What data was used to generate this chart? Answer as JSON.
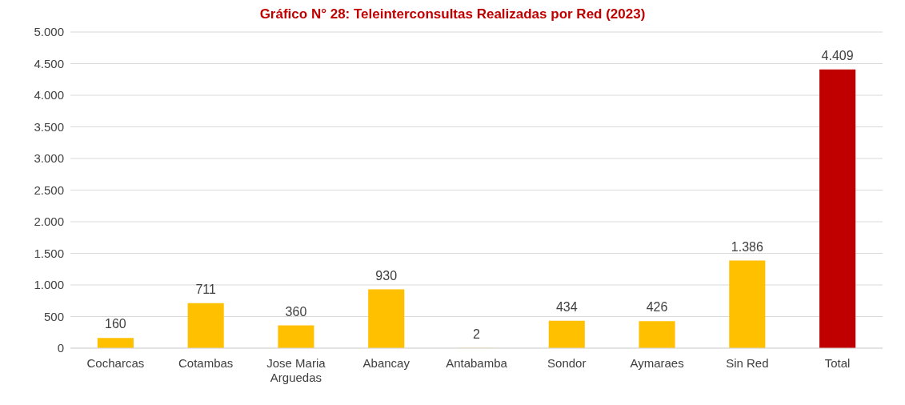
{
  "chart_data": {
    "type": "bar",
    "title": "Gráfico N° 28: Teleinterconsultas Realizadas por Red (2023)",
    "categories": [
      "Cocharcas",
      "Cotambas",
      "Jose Maria Arguedas",
      "Abancay",
      "Antabamba",
      "Sondor",
      "Aymaraes",
      "Sin Red",
      "Total"
    ],
    "values": [
      160,
      711,
      360,
      930,
      2,
      434,
      426,
      1386,
      4409
    ],
    "value_labels": [
      "160",
      "711",
      "360",
      "930",
      "2",
      "434",
      "426",
      "1.386",
      "4.409"
    ],
    "colors": [
      "#ffc000",
      "#ffc000",
      "#ffc000",
      "#ffc000",
      "#ffc000",
      "#ffc000",
      "#ffc000",
      "#ffc000",
      "#c00000"
    ],
    "ylim": [
      0,
      5000
    ],
    "yticks": [
      0,
      {
        "value": 500,
        "label": "500"
      },
      {
        "value": 1000,
        "label": "1.000"
      },
      {
        "value": 1500,
        "label": "1.500"
      },
      {
        "value": 2000,
        "label": "2.000"
      },
      {
        "value": 2500,
        "label": "2.500"
      },
      {
        "value": 3000,
        "label": "3.000"
      },
      {
        "value": 3500,
        "label": "3.500"
      },
      {
        "value": 4000,
        "label": "4.000"
      },
      {
        "value": 4500,
        "label": "4.500"
      },
      {
        "value": 5000,
        "label": "5.000"
      }
    ],
    "grid": "y"
  }
}
